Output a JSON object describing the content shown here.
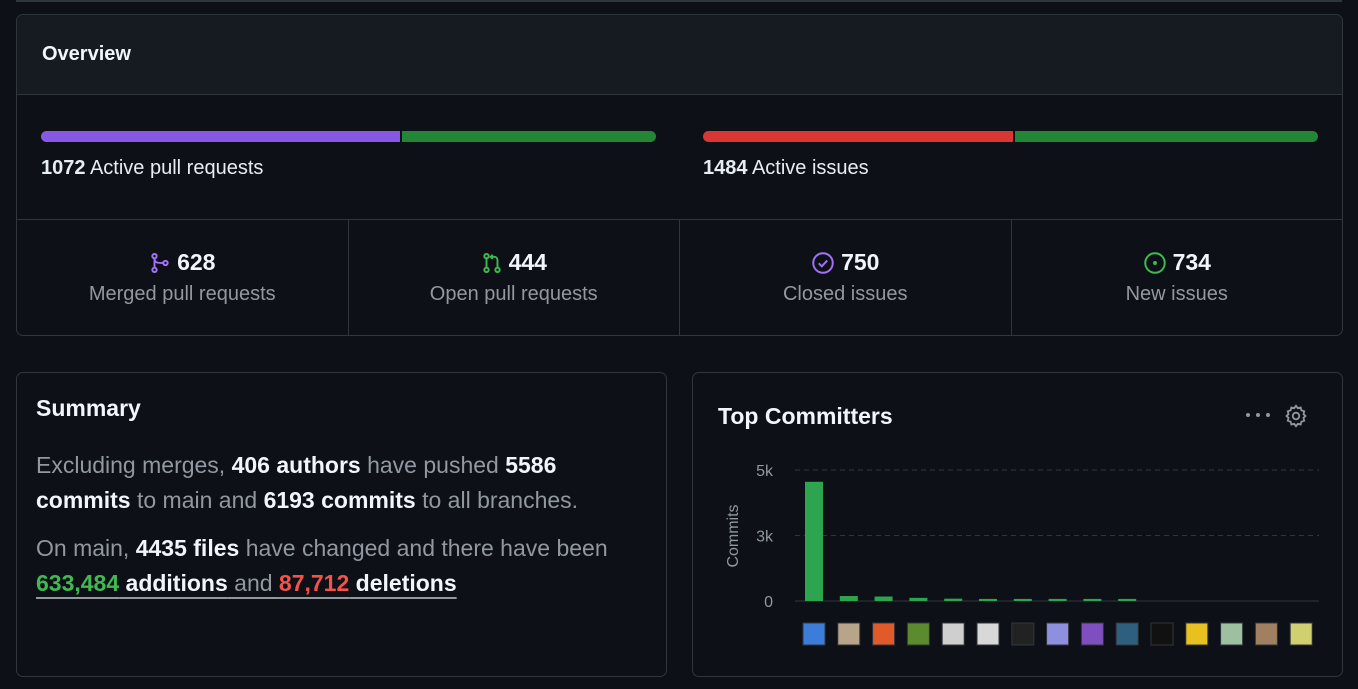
{
  "overview": {
    "title": "Overview",
    "pr_bar": {
      "count": "1072",
      "label": "Active pull requests",
      "merged": 628,
      "open": 444,
      "merged_color": "#8957e5",
      "open_color": "#238636"
    },
    "issue_bar": {
      "count": "1484",
      "label": "Active issues",
      "closed": 750,
      "new": 734,
      "closed_color": "#da3633",
      "new_color": "#238636"
    },
    "stats": [
      {
        "icon": "merged-icon",
        "value": "628",
        "label": "Merged pull requests",
        "color": "#a371f7"
      },
      {
        "icon": "pull-request-icon",
        "value": "444",
        "label": "Open pull requests",
        "color": "#3fb950"
      },
      {
        "icon": "issue-closed-icon",
        "value": "750",
        "label": "Closed issues",
        "color": "#a371f7"
      },
      {
        "icon": "issue-opened-icon",
        "value": "734",
        "label": "New issues",
        "color": "#3fb950"
      }
    ]
  },
  "summary": {
    "title": "Summary",
    "p1": {
      "t1": "Excluding merges, ",
      "authors": "406 authors",
      "t2": " have pushed ",
      "main_commits": "5586 commits",
      "t3": " to main and ",
      "all_commits": "6193 commits",
      "t4": " to all branches."
    },
    "p2": {
      "t1": "On main, ",
      "files": "4435 files",
      "t2": " have changed and there have been ",
      "additions_num": "633,484",
      "additions_word": " additions",
      "t3": " and ",
      "deletions_num": "87,712",
      "deletions_word": " deletions"
    }
  },
  "committers": {
    "title": "Top Committers",
    "more_icon": "kebab-horizontal-icon",
    "settings_icon": "gear-icon"
  },
  "chart_data": {
    "type": "bar",
    "title": "Top Committers",
    "xlabel": "",
    "ylabel": "Commits",
    "ylim": [
      0,
      5000
    ],
    "yticks": [
      0,
      2500,
      5000
    ],
    "ytick_labels": [
      "0",
      "3k",
      "5k"
    ],
    "grid": true,
    "bar_color": "#2da44e",
    "categories": [
      "committer-1",
      "committer-2",
      "committer-3",
      "committer-4",
      "committer-5",
      "committer-6",
      "committer-7",
      "committer-8",
      "committer-9",
      "committer-10",
      "committer-11",
      "committer-12",
      "committer-13",
      "committer-14",
      "committer-15"
    ],
    "values": [
      4550,
      190,
      170,
      120,
      90,
      80,
      80,
      80,
      80,
      80,
      0,
      0,
      0,
      0,
      0
    ],
    "avatar_colors": [
      "#3b7dd8",
      "#b8a488",
      "#e05a2a",
      "#5c8a2e",
      "#cfcfcf",
      "#d8d8d8",
      "#222222",
      "#8f8fe0",
      "#7f4fbf",
      "#2f5f7f",
      "#111111",
      "#e8c020",
      "#9fc0a0",
      "#a08060",
      "#d0d070"
    ]
  }
}
